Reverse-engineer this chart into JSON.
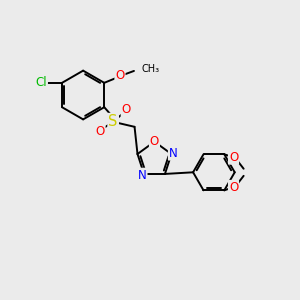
{
  "bg_color": "#ebebeb",
  "bond_color": "#000000",
  "bond_width": 1.4,
  "atom_colors": {
    "Cl": "#00bb00",
    "O": "#ff0000",
    "N": "#0000ff",
    "S": "#cccc00",
    "C": "#000000"
  },
  "font_size_atom": 8.5,
  "font_size_small": 7.0
}
